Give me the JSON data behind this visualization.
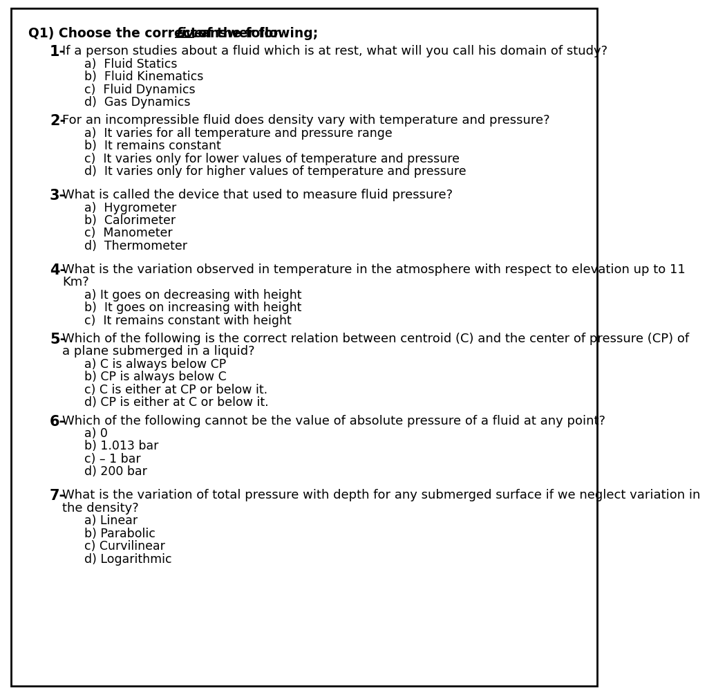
{
  "bg_color": "#ffffff",
  "border_color": "#000000",
  "text_color": "#000000",
  "font_family": "DejaVu Sans",
  "questions": [
    {
      "number": "1-",
      "text": "If a person studies about a fluid which is at rest, what will you call his domain of study?",
      "options": [
        "a)  Fluid Statics",
        "b)  Fluid Kinematics",
        "c)  Fluid Dynamics",
        "d)  Gas Dynamics"
      ],
      "extra_gap": false
    },
    {
      "number": "2-",
      "text": "For an incompressible fluid does density vary with temperature and pressure?",
      "options": [
        "a)  It varies for all temperature and pressure range",
        "b)  It remains constant",
        "c)  It varies only for lower values of temperature and pressure",
        "d)  It varies only for higher values of temperature and pressure"
      ],
      "extra_gap": true
    },
    {
      "number": "3-",
      "text": "What is called the device that used to measure fluid pressure?",
      "options": [
        "a)  Hygrometer",
        "b)  Calorimeter",
        "c)  Manometer",
        "d)  Thermometer"
      ],
      "extra_gap": true
    },
    {
      "number": "4-",
      "text_lines": [
        "What is the variation observed in temperature in the atmosphere with respect to elevation up to 11",
        "Km?"
      ],
      "options": [
        "a) It goes on decreasing with height",
        "b)  It goes on increasing with height",
        "c)  It remains constant with height"
      ],
      "extra_gap": false
    },
    {
      "number": "5-",
      "text_lines": [
        "Which of the following is the correct relation between centroid (C) and the center of pressure (CP) of",
        "a plane submerged in a liquid?"
      ],
      "options": [
        "a) C is always below CP",
        "b) CP is always below C",
        "c) C is either at CP or below it.",
        "d) CP is either at C or below it."
      ],
      "extra_gap": false
    },
    {
      "number": "6-",
      "text_lines": [
        "Which of the following cannot be the value of absolute pressure of a fluid at any point?"
      ],
      "options": [
        "a) 0",
        "b) 1.013 bar",
        "c) – 1 bar",
        "d) 200 bar"
      ],
      "extra_gap": true
    },
    {
      "number": "7-",
      "text_lines": [
        "What is the variation of total pressure with depth for any submerged surface if we neglect variation in",
        "the density?"
      ],
      "options": [
        "a) Linear",
        "b) Parabolic",
        "c) Curvilinear",
        "d) Logarithmic"
      ],
      "extra_gap": false
    }
  ]
}
